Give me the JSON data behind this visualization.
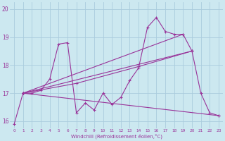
{
  "bg_color": "#cce8f0",
  "grid_color": "#aaccdd",
  "line_color": "#993399",
  "xlim": [
    -0.5,
    23.5
  ],
  "ylim": [
    15.75,
    20.25
  ],
  "yticks": [
    16,
    17,
    18,
    19,
    20
  ],
  "xticks": [
    0,
    1,
    2,
    3,
    4,
    5,
    6,
    7,
    8,
    9,
    10,
    11,
    12,
    13,
    14,
    15,
    16,
    17,
    18,
    19,
    20,
    21,
    22,
    23
  ],
  "xlabel": "Windchill (Refroidissement éolien,°C)",
  "series": [
    {
      "x": [
        0,
        1,
        2,
        3,
        4,
        5,
        6,
        7,
        8,
        9,
        10,
        11,
        12,
        13,
        14,
        15,
        16,
        17,
        18,
        19,
        20,
        21,
        22,
        23
      ],
      "y": [
        15.9,
        17.0,
        17.0,
        17.1,
        17.5,
        18.75,
        18.8,
        16.3,
        16.65,
        16.4,
        17.0,
        16.6,
        16.85,
        17.45,
        17.9,
        19.35,
        19.7,
        19.2,
        19.1,
        19.1,
        18.5,
        17.0,
        16.3,
        16.2
      ]
    },
    {
      "x": [
        1,
        7,
        14,
        20
      ],
      "y": [
        17.0,
        17.35,
        17.95,
        18.5
      ]
    },
    {
      "x": [
        1,
        23
      ],
      "y": [
        17.0,
        16.2
      ]
    },
    {
      "x": [
        1,
        19
      ],
      "y": [
        17.0,
        19.1
      ]
    },
    {
      "x": [
        1,
        20
      ],
      "y": [
        17.0,
        18.5
      ]
    }
  ]
}
